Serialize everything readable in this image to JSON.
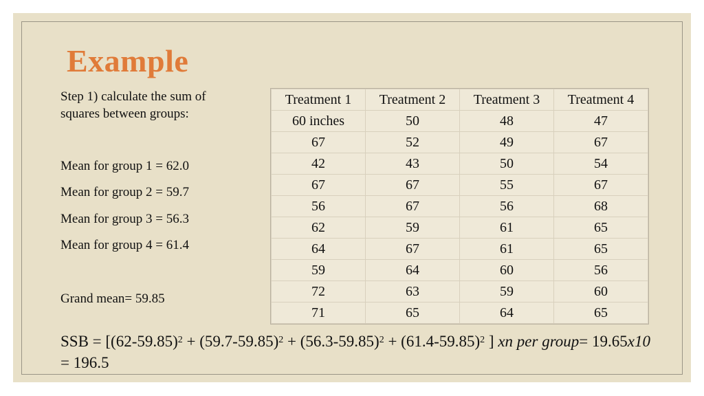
{
  "title": "Example",
  "step": "Step 1) calculate the sum of squares between groups:",
  "means": [
    "Mean for group 1 = 62.0",
    "Mean for group 2 = 59.7",
    "Mean for group 3 = 56.3",
    "Mean for group 4 = 61.4"
  ],
  "grand_mean": "Grand mean= 59.85",
  "table": {
    "headers": [
      "Treatment 1",
      "Treatment 2",
      "Treatment 3",
      "Treatment 4"
    ],
    "rows": [
      [
        "60 inches",
        "50",
        "48",
        "47"
      ],
      [
        "67",
        "52",
        "49",
        "67"
      ],
      [
        "42",
        "43",
        "50",
        "54"
      ],
      [
        "67",
        "67",
        "55",
        "67"
      ],
      [
        "56",
        "67",
        "56",
        "68"
      ],
      [
        "62",
        "59",
        "61",
        "65"
      ],
      [
        "64",
        "67",
        "61",
        "65"
      ],
      [
        "59",
        "64",
        "60",
        "56"
      ],
      [
        "72",
        "63",
        "59",
        "60"
      ],
      [
        "71",
        "65",
        "64",
        "65"
      ]
    ]
  },
  "formula": {
    "prefix": "SSB = [(62-59.85)",
    "t1": " + (59.7-59.85)",
    "t2": " + (56.3-59.85)",
    "t3": " + (61.4-59.85)",
    "close": " ] ",
    "xn": "xn per group",
    "eq": "= 19.65",
    "x10": "x10",
    "result": " = 196.5",
    "exp": "2"
  },
  "colors": {
    "background": "#e8e0c8",
    "title": "#e07b39",
    "table": "#efe9d8"
  }
}
